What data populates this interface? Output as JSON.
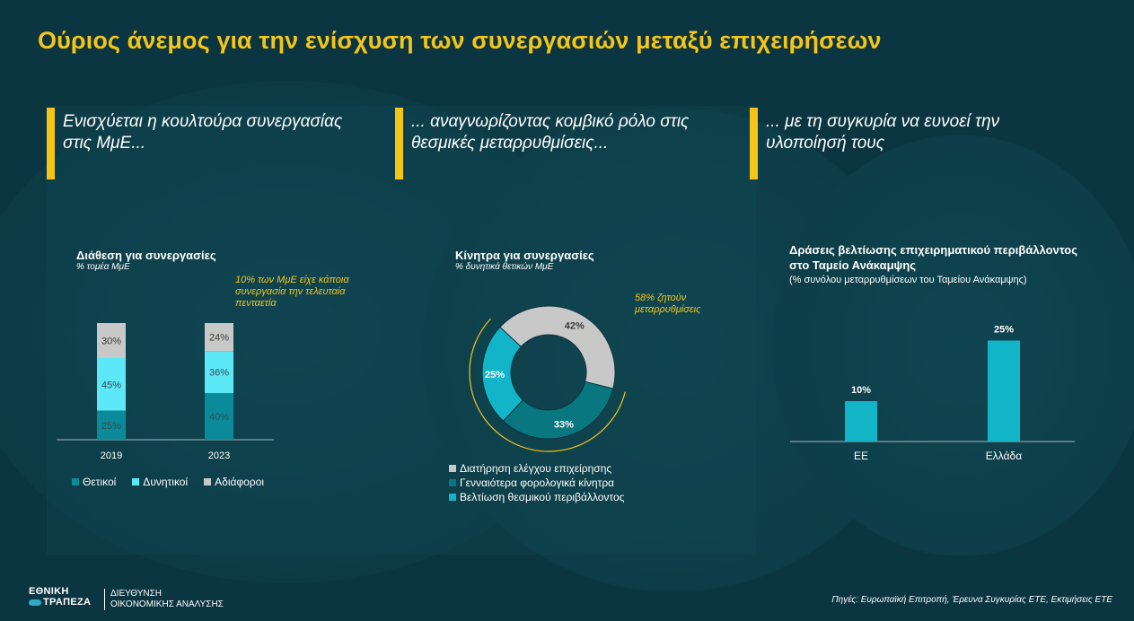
{
  "title": "Ούριος άνεμος για την ενίσχυση των συνεργασιών μεταξύ επιχειρήσεων",
  "sections": [
    {
      "heading": "Ενισχύεται η κουλτούρα συνεργασίας στις ΜμΕ..."
    },
    {
      "heading": "... αναγνωρίζοντας κομβικό ρόλο στις θεσμικές μεταρρυθμίσεις..."
    },
    {
      "heading": "... με τη συγκυρία να ευνοεί την υλοποίησή τους"
    }
  ],
  "colors": {
    "background": "#0b3540",
    "accent": "#f5c518",
    "dark_teal": "#0b8a9a",
    "light_cyan": "#5ce8f7",
    "grey": "#c8c8c8",
    "teal_mid": "#08777f",
    "teal_bright": "#12b5c8"
  },
  "chart_data": [
    {
      "type": "bar",
      "stacked": true,
      "title": "Διάθεση για συνεργασίες",
      "subtitle": "% τομέα ΜμΕ",
      "note": "10% των ΜμΕ είχε κάποια συνεργασία την τελευταία πενταετία",
      "categories": [
        "2019",
        "2023"
      ],
      "series": [
        {
          "name": "Θετικοί",
          "values": [
            25,
            40
          ],
          "labels": [
            "25%",
            "40%"
          ],
          "color": "#0b8a9a"
        },
        {
          "name": "Δυνητικοί",
          "values": [
            45,
            36
          ],
          "labels": [
            "45%",
            "36%"
          ],
          "color": "#5ce8f7"
        },
        {
          "name": "Αδιάφοροι",
          "values": [
            30,
            24
          ],
          "labels": [
            "30%",
            "24%"
          ],
          "color": "#c8c8c8"
        }
      ],
      "ylim": [
        0,
        100
      ]
    },
    {
      "type": "pie",
      "donut": true,
      "title": "Κίνητρα για  συνεργασίες",
      "subtitle": "% δυνητικά θετικών ΜμΕ",
      "note": "58%  ζητούν μεταρρυθμίσεις",
      "slices": [
        {
          "name": "Διατήρηση ελέγχου επιχείρησης",
          "value": 42,
          "label": "42%",
          "color": "#c8c8c8"
        },
        {
          "name": "Γενναιότερα φορολογικά κίνητρα",
          "value": 33,
          "label": "33%",
          "color": "#08777f"
        },
        {
          "name": "Βελτίωση θεσμικού περιβάλλοντος",
          "value": 25,
          "label": "25%",
          "color": "#12b5c8"
        }
      ]
    },
    {
      "type": "bar",
      "title": "Δράσεις βελτίωσης επιχειρηματικού περιβάλλοντος στο Ταμείο Ανάκαμψης",
      "subtitle": "(% συνόλου μεταρρυθμίσεων του Ταμείου Ανάκαμψης)",
      "categories": [
        "ΕΕ",
        "Ελλάδα"
      ],
      "values": [
        10,
        25
      ],
      "labels": [
        "10%",
        "25%"
      ],
      "color": "#12b5c8",
      "ylim": [
        0,
        30
      ]
    }
  ],
  "footer": {
    "logo_line1": "ΕΘΝΙΚΗ",
    "logo_line2": "ΤΡΑΠΕΖΑ",
    "dept_line1": "ΔΙΕΥΘΥΝΣΗ",
    "dept_line2": "ΟΙΚΟΝΟΜΙΚΗΣ ΑΝΑΛΥΣΗΣ",
    "source": "Πηγές: Ευρωπαϊκή Επιτροπή, Έρευνα Συγκυρίας ΕΤΕ, Εκτιμήσεις ΕΤΕ"
  }
}
